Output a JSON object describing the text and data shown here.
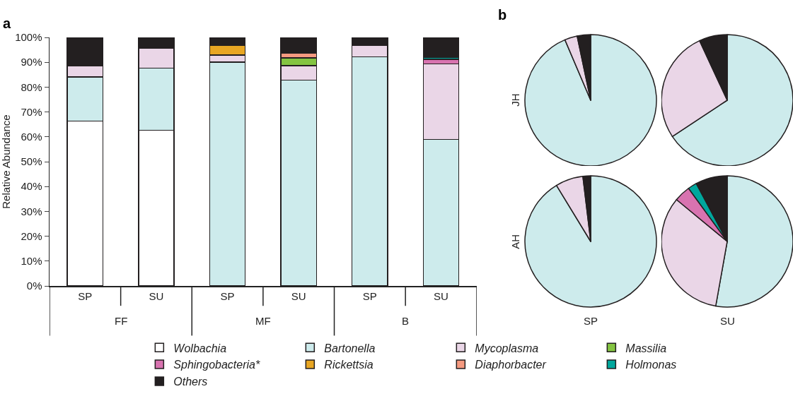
{
  "chart_data": [
    {
      "type": "bar",
      "title": "a",
      "ylabel": "Relative Abundance",
      "stacked": true,
      "categories": [
        "SP",
        "SU",
        "SP",
        "SU",
        "SP",
        "SU"
      ],
      "annotations": [
        "FF",
        "MF",
        "B"
      ],
      "series": [
        {
          "name": "Wolbachia",
          "color": "#ffffff",
          "values": [
            66.4,
            62.7,
            null,
            null,
            null,
            null
          ]
        },
        {
          "name": "Bartonella",
          "color": "#cdebec",
          "values": [
            17.7,
            25,
            90,
            82.8,
            92.2,
            58.9
          ]
        },
        {
          "name": "Mycoplasma",
          "color": "#ead6e7",
          "values": [
            4.4,
            7.9,
            2.9,
            5.9,
            4.7,
            30.4
          ]
        },
        {
          "name": "Massilia",
          "color": "#84c441",
          "values": [
            null,
            null,
            null,
            3,
            null,
            null
          ]
        },
        {
          "name": "Sphingobacteria*",
          "color": "#d873b0",
          "values": [
            null,
            null,
            null,
            null,
            null,
            1.9
          ]
        },
        {
          "name": "Rickettsia",
          "color": "#e8a623",
          "values": [
            null,
            null,
            4,
            null,
            null,
            null
          ]
        },
        {
          "name": "Diaphorbacter",
          "color": "#f59a80",
          "values": [
            null,
            null,
            null,
            2.1,
            null,
            null
          ]
        },
        {
          "name": "Holmonas",
          "color": "#00a79d",
          "values": [
            null,
            null,
            null,
            null,
            null,
            0.9
          ]
        },
        {
          "name": "Others",
          "color": "#231f20",
          "values": [
            11.5,
            4.4,
            3.1,
            6.2,
            3.1,
            7.9
          ]
        }
      ],
      "ylim": [
        0,
        100
      ],
      "yticks": [
        {
          "value": 0,
          "label": "0%"
        },
        {
          "value": 10,
          "label": "10%"
        },
        {
          "value": 20,
          "label": "20%"
        },
        {
          "value": 30,
          "label": "30%"
        },
        {
          "value": 40,
          "label": "40%"
        },
        {
          "value": 50,
          "label": "50%"
        },
        {
          "value": 60,
          "label": "60%"
        },
        {
          "value": 70,
          "label": "70%"
        },
        {
          "value": 80,
          "label": "80%"
        },
        {
          "value": 90,
          "label": "90%"
        },
        {
          "value": 100,
          "label": "100%"
        }
      ],
      "grid": false,
      "legend": "bottom"
    },
    {
      "type": "pie",
      "title": "b",
      "ylabel": "JH",
      "categories": [
        null,
        null,
        null
      ],
      "values": [
        93.6,
        3.1,
        3.3
      ],
      "colors": [
        "#cdebec",
        "#ead6e7",
        "#231f20"
      ]
    },
    {
      "type": "pie",
      "categories": [
        null,
        null,
        null
      ],
      "values": [
        65.7,
        27.4,
        6.9
      ],
      "colors": [
        "#cdebec",
        "#ead6e7",
        "#231f20"
      ]
    },
    {
      "type": "pie",
      "ylabel": "AH",
      "xlabel": "SP",
      "categories": [
        null,
        null,
        null
      ],
      "values": [
        91.3,
        6.8,
        1.9
      ],
      "colors": [
        "#cdebec",
        "#ead6e7",
        "#231f20"
      ]
    },
    {
      "type": "pie",
      "xlabel": "SU",
      "categories": [
        null,
        null,
        null,
        null,
        null
      ],
      "values": [
        52.8,
        33.2,
        4,
        2.2,
        7.8
      ],
      "colors": [
        "#cdebec",
        "#ead6e7",
        "#d873b0",
        "#00a79d",
        "#231f20"
      ]
    }
  ]
}
